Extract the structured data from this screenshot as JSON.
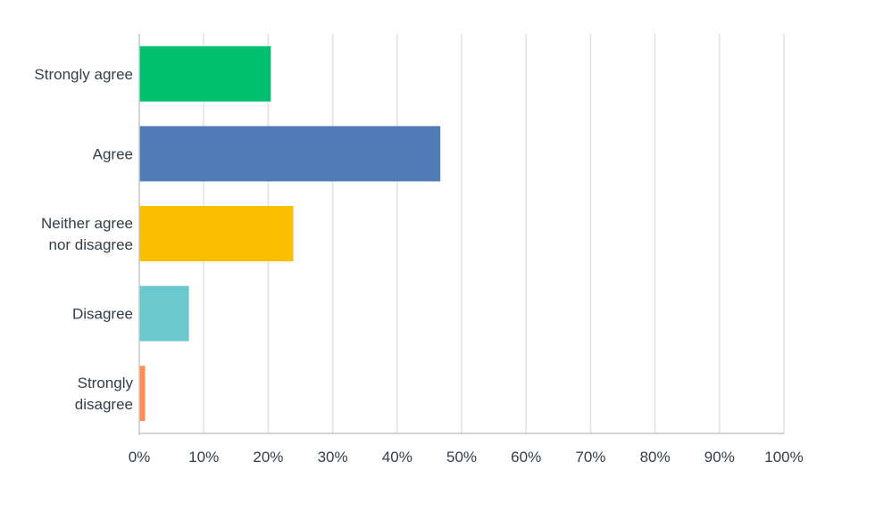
{
  "chart_data": {
    "type": "bar",
    "orientation": "horizontal",
    "categories": [
      [
        "Strongly agree"
      ],
      [
        "Agree"
      ],
      [
        "Neither agree",
        "nor disagree"
      ],
      [
        "Disagree"
      ],
      [
        "Strongly",
        "disagree"
      ]
    ],
    "values": [
      20.4,
      46.7,
      23.9,
      7.7,
      0.9
    ],
    "colors": [
      "#00bf6f",
      "#507cb6",
      "#f9be00",
      "#6bc8cd",
      "#ff8b4f"
    ],
    "xlim": [
      0,
      100
    ],
    "xticks": [
      "0%",
      "10%",
      "20%",
      "30%",
      "40%",
      "50%",
      "60%",
      "70%",
      "80%",
      "90%",
      "100%"
    ],
    "grid": true,
    "title": "",
    "xlabel": "",
    "ylabel": ""
  }
}
